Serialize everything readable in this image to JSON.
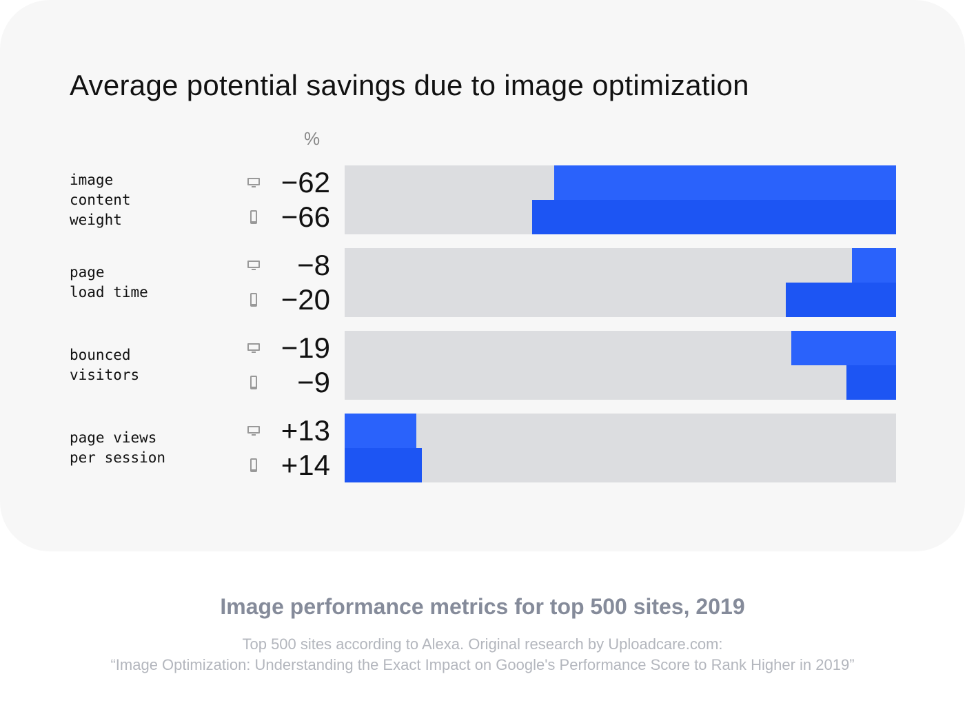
{
  "chart_data": {
    "type": "bar",
    "orientation": "horizontal",
    "title": "Average potential savings due to image optimization",
    "unit_label": "%",
    "xlim": [
      0,
      100
    ],
    "series_names": [
      "desktop",
      "mobile"
    ],
    "colors": {
      "desktop": "#2a62fb",
      "mobile": "#1d55f3",
      "track": "#dcdde0"
    },
    "categories": [
      {
        "label_lines": [
          "image",
          "content",
          "weight"
        ],
        "desktop": {
          "label": "−62",
          "value": -62
        },
        "mobile": {
          "label": "−66",
          "value": -66
        }
      },
      {
        "label_lines": [
          "page",
          "load time"
        ],
        "desktop": {
          "label": "−8",
          "value": -8
        },
        "mobile": {
          "label": "−20",
          "value": -20
        }
      },
      {
        "label_lines": [
          "bounced",
          "visitors"
        ],
        "desktop": {
          "label": "−19",
          "value": -19
        },
        "mobile": {
          "label": "−9",
          "value": -9
        }
      },
      {
        "label_lines": [
          "page views",
          "per session"
        ],
        "desktop": {
          "label": "+13",
          "value": 13
        },
        "mobile": {
          "label": "+14",
          "value": 14
        }
      }
    ]
  },
  "footer": {
    "subtitle": "Image performance metrics for top 500 sites, 2019",
    "source_line1": "Top 500 sites according to Alexa. Original research by Uploadcare.com:",
    "source_line2": "“Image Optimization: Understanding the Exact Impact on Google's Performance Score to Rank Higher in 2019”"
  }
}
